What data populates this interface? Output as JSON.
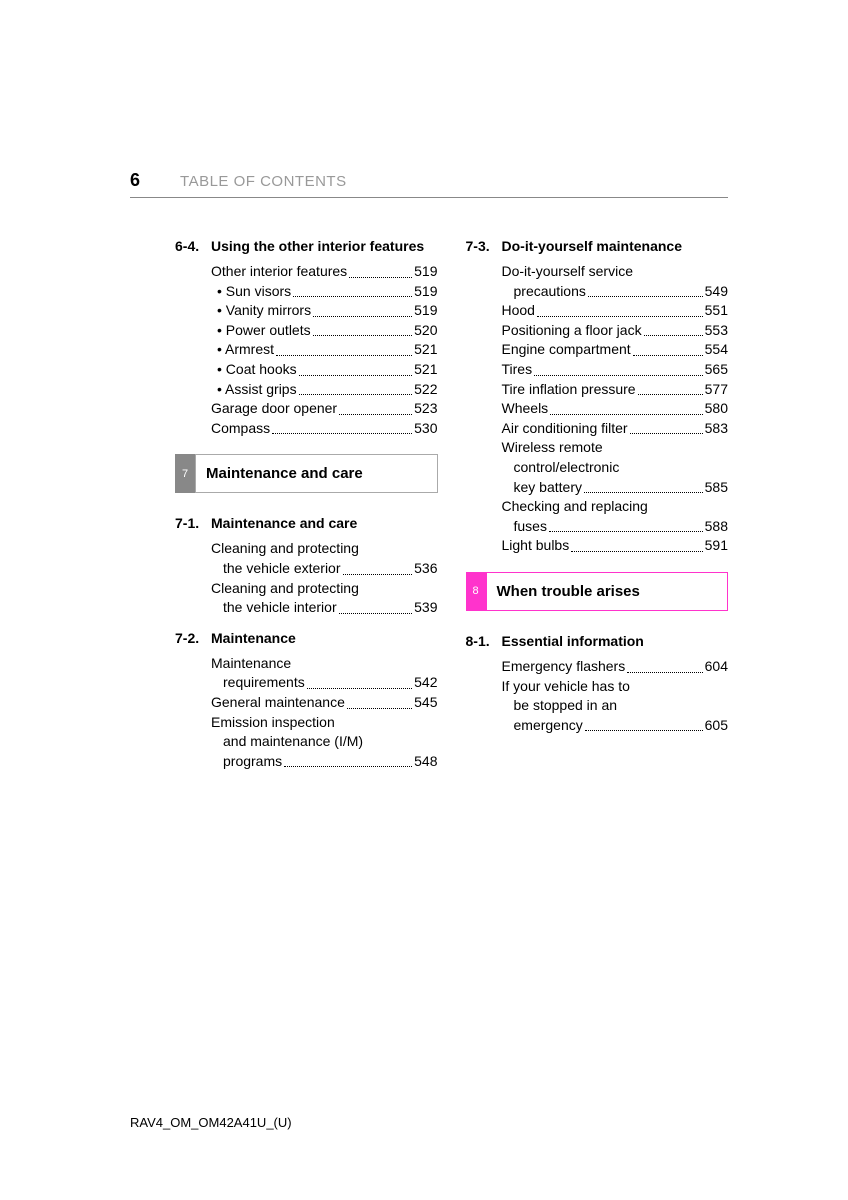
{
  "header": {
    "page_number": "6",
    "title": "TABLE OF CONTENTS"
  },
  "footer": "RAV4_OM_OM42A41U_(U)",
  "left": {
    "s64": {
      "num": "6-4.",
      "title": "Using the other interior features",
      "items": [
        {
          "label": "Other interior features",
          "page": "519"
        },
        {
          "label": "• Sun visors",
          "page": "519",
          "sub": true
        },
        {
          "label": "• Vanity mirrors",
          "page": "519",
          "sub": true
        },
        {
          "label": "• Power outlets",
          "page": "520",
          "sub": true
        },
        {
          "label": "• Armrest",
          "page": "521",
          "sub": true
        },
        {
          "label": "• Coat hooks",
          "page": "521",
          "sub": true
        },
        {
          "label": "• Assist grips",
          "page": "522",
          "sub": true
        },
        {
          "label": "Garage door opener",
          "page": "523"
        },
        {
          "label": "Compass",
          "page": "530"
        }
      ]
    },
    "ch7": {
      "num": "7",
      "title": "Maintenance and care"
    },
    "s71": {
      "num": "7-1.",
      "title": "Maintenance and care",
      "m1": {
        "l1": "Cleaning and protecting",
        "l2": "the vehicle exterior",
        "page": "536"
      },
      "m2": {
        "l1": "Cleaning and protecting",
        "l2": "the vehicle interior",
        "page": "539"
      }
    },
    "s72": {
      "num": "7-2.",
      "title": "Maintenance",
      "m1": {
        "l1": "Maintenance",
        "l2": "requirements",
        "page": "542"
      },
      "i2": {
        "label": "General maintenance",
        "page": "545"
      },
      "m3": {
        "l1": "Emission inspection",
        "l2": "and maintenance (I/M)",
        "l3": "programs",
        "page": "548"
      }
    }
  },
  "right": {
    "s73": {
      "num": "7-3.",
      "title": "Do-it-yourself maintenance",
      "m1": {
        "l1": "Do-it-yourself service",
        "l2": "precautions",
        "page": "549"
      },
      "items": [
        {
          "label": "Hood",
          "page": "551"
        },
        {
          "label": "Positioning a floor jack",
          "page": "553"
        },
        {
          "label": "Engine compartment",
          "page": "554"
        },
        {
          "label": "Tires",
          "page": "565"
        },
        {
          "label": "Tire inflation pressure",
          "page": "577"
        },
        {
          "label": "Wheels",
          "page": "580"
        },
        {
          "label": "Air conditioning filter",
          "page": "583"
        }
      ],
      "m2": {
        "l1": "Wireless remote",
        "l2": "control/electronic",
        "l3": "key battery",
        "page": "585"
      },
      "m3": {
        "l1": "Checking and replacing",
        "l2": "fuses",
        "page": "588"
      },
      "i_last": {
        "label": "Light bulbs",
        "page": "591"
      }
    },
    "ch8": {
      "num": "8",
      "title": "When trouble arises"
    },
    "s81": {
      "num": "8-1.",
      "title": "Essential information",
      "i1": {
        "label": "Emergency flashers",
        "page": "604"
      },
      "m1": {
        "l1": "If your vehicle has to",
        "l2": "be stopped in an",
        "l3": "emergency",
        "page": "605"
      }
    }
  }
}
